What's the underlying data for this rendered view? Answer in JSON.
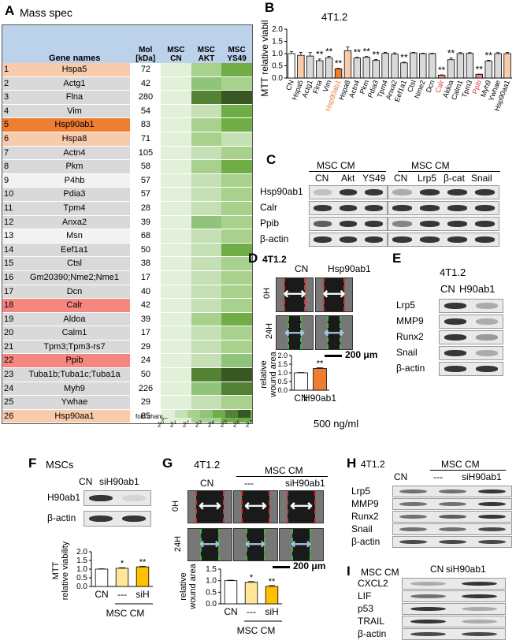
{
  "panel_a": {
    "letter": "A",
    "title": "Mass spec",
    "headers": {
      "gene": "Gene names",
      "mw": "Mol [kDa]",
      "cn": "MSC CN",
      "akt": "MSC AKT",
      "ys49": "MSC YS49"
    },
    "rows": [
      {
        "n": "1",
        "gene": "Hspa5",
        "mw": "72",
        "bg": "#f8cbad",
        "h": [
          "#e2f0d9",
          "#a9d18e",
          "#70ad47"
        ]
      },
      {
        "n": "2",
        "gene": "Actg1",
        "mw": "42",
        "bg": "#d9d9d9",
        "h": [
          "#e2f0d9",
          "#8fc47a",
          "#a9d18e"
        ]
      },
      {
        "n": "3",
        "gene": "Flna",
        "mw": "280",
        "bg": "#d9d9d9",
        "h": [
          "#e2f0d9",
          "#548235",
          "#385723"
        ]
      },
      {
        "n": "4",
        "gene": "Vim",
        "mw": "54",
        "bg": "#d9d9d9",
        "h": [
          "#e2f0d9",
          "#c5e0b4",
          "#70ad47"
        ]
      },
      {
        "n": "5",
        "gene": "Hsp90ab1",
        "mw": "83",
        "bg": "#ed7d31",
        "h": [
          "#e2f0d9",
          "#a9d18e",
          "#70ad47"
        ]
      },
      {
        "n": "6",
        "gene": "Hspa8",
        "mw": "71",
        "bg": "#f8cbad",
        "h": [
          "#e2f0d9",
          "#a9d18e",
          "#c5e0b4"
        ]
      },
      {
        "n": "7",
        "gene": "Actn4",
        "mw": "105",
        "bg": "#d9d9d9",
        "h": [
          "#e2f0d9",
          "#c5e0b4",
          "#a9d18e"
        ]
      },
      {
        "n": "8",
        "gene": "Pkm",
        "mw": "58",
        "bg": "#d9d9d9",
        "h": [
          "#e2f0d9",
          "#a9d18e",
          "#70ad47"
        ]
      },
      {
        "n": "9",
        "gene": "P4hb",
        "mw": "57",
        "bg": "#f2f2f2",
        "h": [
          "#e2f0d9",
          "#c5e0b4",
          "#a9d18e"
        ]
      },
      {
        "n": "10",
        "gene": "Pdia3",
        "mw": "57",
        "bg": "#d9d9d9",
        "h": [
          "#e2f0d9",
          "#c5e0b4",
          "#a9d18e"
        ]
      },
      {
        "n": "11",
        "gene": "Tpm4",
        "mw": "28",
        "bg": "#d9d9d9",
        "h": [
          "#e2f0d9",
          "#c5e0b4",
          "#a9d18e"
        ]
      },
      {
        "n": "12",
        "gene": "Anxa2",
        "mw": "39",
        "bg": "#d9d9d9",
        "h": [
          "#e2f0d9",
          "#8fc47a",
          "#a9d18e"
        ]
      },
      {
        "n": "13",
        "gene": "Msn",
        "mw": "68",
        "bg": "#f2f2f2",
        "h": [
          "#e2f0d9",
          "#c5e0b4",
          "#a9d18e"
        ]
      },
      {
        "n": "14",
        "gene": "Eef1a1",
        "mw": "50",
        "bg": "#d9d9d9",
        "h": [
          "#e2f0d9",
          "#c5e0b4",
          "#70ad47"
        ]
      },
      {
        "n": "15",
        "gene": "Ctsl",
        "mw": "38",
        "bg": "#d9d9d9",
        "h": [
          "#e2f0d9",
          "#c5e0b4",
          "#a9d18e"
        ]
      },
      {
        "n": "16",
        "gene": "Gm20390;Nme2;Nme1",
        "mw": "17",
        "bg": "#d9d9d9",
        "h": [
          "#e2f0d9",
          "#c5e0b4",
          "#a9d18e"
        ]
      },
      {
        "n": "17",
        "gene": "Dcn",
        "mw": "40",
        "bg": "#d9d9d9",
        "h": [
          "#e2f0d9",
          "#c5e0b4",
          "#a9d18e"
        ]
      },
      {
        "n": "18",
        "gene": "Calr",
        "mw": "42",
        "bg": "#f4877f",
        "h": [
          "#e2f0d9",
          "#c5e0b4",
          "#a9d18e"
        ]
      },
      {
        "n": "19",
        "gene": "Aldoa",
        "mw": "39",
        "bg": "#d9d9d9",
        "h": [
          "#e2f0d9",
          "#a9d18e",
          "#70ad47"
        ]
      },
      {
        "n": "20",
        "gene": "Calm1",
        "mw": "17",
        "bg": "#d9d9d9",
        "h": [
          "#e2f0d9",
          "#c5e0b4",
          "#a9d18e"
        ]
      },
      {
        "n": "21",
        "gene": "Tpm3;Tpm3-rs7",
        "mw": "29",
        "bg": "#d9d9d9",
        "h": [
          "#e2f0d9",
          "#c5e0b4",
          "#a9d18e"
        ]
      },
      {
        "n": "22",
        "gene": "Ppib",
        "mw": "24",
        "bg": "#f4877f",
        "h": [
          "#e2f0d9",
          "#c5e0b4",
          "#8fc47a"
        ]
      },
      {
        "n": "23",
        "gene": "Tuba1b;Tuba1c;Tuba1a",
        "mw": "50",
        "bg": "#d9d9d9",
        "h": [
          "#e2f0d9",
          "#548235",
          "#385723"
        ]
      },
      {
        "n": "24",
        "gene": "Myh9",
        "mw": "226",
        "bg": "#d9d9d9",
        "h": [
          "#e2f0d9",
          "#8fc47a",
          "#548235"
        ]
      },
      {
        "n": "25",
        "gene": "Ywhae",
        "mw": "29",
        "bg": "#d9d9d9",
        "h": [
          "#e2f0d9",
          "#c5e0b4",
          "#a9d18e"
        ]
      },
      {
        "n": "26",
        "gene": "Hsp90aa1",
        "mw": "85",
        "bg": "#f8cbad",
        "h": [
          "#e2f0d9",
          "#a9d18e",
          "#70ad47"
        ]
      }
    ],
    "scale_title": "fold change",
    "scale_colors": [
      "#e2f0d9",
      "#c5e0b4",
      "#a9d18e",
      "#8fc47a",
      "#70ad47",
      "#548235",
      "#385723"
    ],
    "scale_exps": [
      "0",
      "1",
      "2",
      "3",
      "4",
      "5",
      "6",
      "7"
    ]
  },
  "panel_b": {
    "letter": "B",
    "title": "4T1.2",
    "ylabel": "MTT relative viability",
    "chart_data": {
      "type": "bar",
      "categories": [
        "CN",
        "Hspa5",
        "Actg1",
        "Flna",
        "Vim",
        "Hsp90ab1",
        "Hspa8",
        "Actn4",
        "Pkm",
        "Pdia3",
        "Tpm4",
        "Anxa2",
        "Eef1a1",
        "Ctsl",
        "Nme2",
        "Dcn",
        "Calr",
        "Aldoa",
        "Calm1",
        "Tpm3",
        "Ppib",
        "Myh9",
        "Ywhae",
        "Hsp90aa1"
      ],
      "values": [
        1.0,
        0.93,
        0.9,
        0.71,
        0.83,
        0.38,
        1.12,
        0.82,
        0.85,
        0.72,
        1.01,
        0.98,
        0.62,
        1.03,
        1.0,
        1.0,
        0.12,
        0.75,
        1.0,
        1.01,
        0.15,
        0.7,
        1.0,
        1.0
      ],
      "errors": [
        0.08,
        0.12,
        0.14,
        0.07,
        0.06,
        0.02,
        0.15,
        0.03,
        0.03,
        0.04,
        0.04,
        0.05,
        0.03,
        0.02,
        0.02,
        0.02,
        0.01,
        0.07,
        0.04,
        0.03,
        0.01,
        0.03,
        0.04,
        0.05
      ],
      "colors": [
        "#fff",
        "#f8cbad",
        "#d9d9d9",
        "#d9d9d9",
        "#d9d9d9",
        "#ed7d31",
        "#f8cbad",
        "#d9d9d9",
        "#d9d9d9",
        "#d9d9d9",
        "#d9d9d9",
        "#d9d9d9",
        "#d9d9d9",
        "#d9d9d9",
        "#d9d9d9",
        "#d9d9d9",
        "#f4877f",
        "#d9d9d9",
        "#d9d9d9",
        "#d9d9d9",
        "#f4877f",
        "#d9d9d9",
        "#d9d9d9",
        "#f8cbad"
      ],
      "sig": [
        "",
        "",
        "",
        "**",
        "**",
        "**",
        "",
        "**",
        "**",
        "**",
        "",
        "",
        "**",
        "",
        "",
        "",
        "**",
        "**",
        "",
        "",
        "**",
        "**",
        "",
        ""
      ],
      "label_colors": [
        "#000",
        "#000",
        "#000",
        "#000",
        "#000",
        "#e07b39",
        "#000",
        "#000",
        "#000",
        "#000",
        "#000",
        "#000",
        "#000",
        "#000",
        "#000",
        "#000",
        "#e0413a",
        "#000",
        "#000",
        "#000",
        "#e0413a",
        "#000",
        "#000",
        "#000"
      ],
      "yticks": [
        "0.0",
        "0.5",
        "1.0",
        "1.5",
        "2.0"
      ],
      "ylim": [
        0,
        2
      ]
    }
  },
  "panel_c": {
    "letter": "C",
    "group1": "MSC CM",
    "group2": "MSC CM",
    "lanes1": [
      "CN",
      "Akt",
      "YS49"
    ],
    "lanes2": [
      "CN",
      "Lrp5",
      "β-cat",
      "Snail"
    ],
    "rows": [
      "Hsp90ab1",
      "Calr",
      "Ppib",
      "β-actin"
    ]
  },
  "panel_d": {
    "letter": "D",
    "title": "4T1.2",
    "cols": [
      "CN",
      "Hsp90ab1"
    ],
    "times": [
      "0H",
      "24H"
    ],
    "scale": "200 μm",
    "ylabel": "relative wound area",
    "sig": "**",
    "xcats": [
      "CN",
      "H90ab1"
    ],
    "dose": "500 ng/ml",
    "chart_data": {
      "type": "bar",
      "categories": [
        "CN",
        "H90ab1"
      ],
      "values": [
        1.0,
        1.25
      ],
      "errors": [
        0.02,
        0.04
      ],
      "colors": [
        "#fff",
        "#ed7d31"
      ],
      "yticks": [
        "0.0",
        "0.5",
        "1.0",
        "1.5",
        "2.0"
      ],
      "ylim": [
        0,
        2
      ]
    }
  },
  "panel_e": {
    "letter": "E",
    "title": "4T1.2",
    "lanes": [
      "CN",
      "H90ab1"
    ],
    "rows": [
      "Lrp5",
      "MMP9",
      "Runx2",
      "Snail",
      "β-actin"
    ]
  },
  "panel_f": {
    "letter": "F",
    "title": "MSCs",
    "lanes": [
      "CN",
      "siH90ab1"
    ],
    "rows": [
      "H90ab1",
      "β-actin"
    ],
    "ylabel": "MTT relative viability",
    "sig": [
      "",
      "*",
      "**"
    ],
    "xcats": [
      "CN",
      "---",
      "siH"
    ],
    "group": "MSC CM",
    "chart_data": {
      "type": "bar",
      "categories": [
        "CN",
        "---",
        "siH"
      ],
      "values": [
        1.0,
        1.05,
        1.13
      ],
      "errors": [
        0.02,
        0.03,
        0.03
      ],
      "colors": [
        "#fff",
        "#ffe699",
        "#ffc000"
      ],
      "yticks": [
        "0.0",
        "0.5",
        "1.0",
        "1.5",
        "2.0"
      ],
      "ylim": [
        0,
        2
      ]
    }
  },
  "panel_g": {
    "letter": "G",
    "title": "4T1.2",
    "group": "MSC CM",
    "cols": [
      "CN",
      "---",
      "siH90ab1"
    ],
    "times": [
      "0H",
      "24H"
    ],
    "scale": "200 μm",
    "ylabel": "relative wound area",
    "sig": [
      "",
      "*",
      "**"
    ],
    "xcats": [
      "CN",
      "---",
      "siH"
    ],
    "group_x": "MSC CM",
    "chart_data": {
      "type": "bar",
      "categories": [
        "CN",
        "---",
        "siH"
      ],
      "values": [
        1.0,
        0.93,
        0.75
      ],
      "errors": [
        0.02,
        0.03,
        0.04
      ],
      "colors": [
        "#fff",
        "#ffe699",
        "#ffc000"
      ],
      "yticks": [
        "0.0",
        "0.5",
        "1.0",
        "1.5"
      ],
      "ylim": [
        0,
        1.5
      ]
    }
  },
  "panel_h": {
    "letter": "H",
    "title": "4T1.2",
    "group": "MSC CM",
    "lanes": [
      "CN",
      "---",
      "siH90ab1"
    ],
    "rows": [
      "Lrp5",
      "MMP9",
      "Runx2",
      "Snail",
      "β-actin"
    ]
  },
  "panel_i": {
    "letter": "I",
    "title": "MSC CM",
    "lanes": [
      "CN",
      "siH90ab1"
    ],
    "rows": [
      "CXCL2",
      "LIF",
      "p53",
      "TRAIL",
      "β-actin"
    ]
  }
}
